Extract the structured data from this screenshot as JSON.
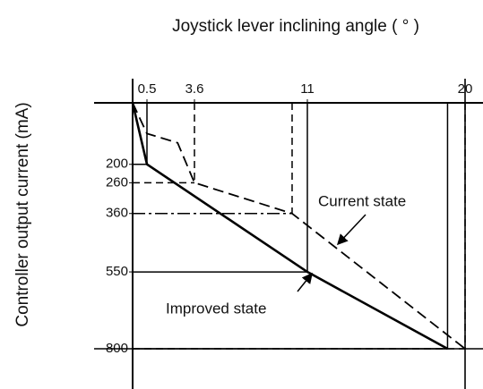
{
  "chart_data": {
    "type": "line",
    "xlabel": "Joystick lever inclining angle ( ° )",
    "ylabel": "Controller output current (mA)",
    "xlim": [
      0,
      20
    ],
    "xticks": [
      0.5,
      3.6,
      11,
      20
    ],
    "ylim": [
      0,
      800
    ],
    "yticks": [
      200,
      260,
      360,
      550,
      800
    ],
    "color": "#000000",
    "series": [
      {
        "name": "Improved state",
        "style": "solid",
        "x": [
          0,
          0.5,
          11,
          19
        ],
        "values": [
          0,
          200,
          550,
          800
        ]
      },
      {
        "name": "Current state",
        "style": "dashed",
        "x": [
          0,
          0.5,
          2.5,
          3.6,
          10,
          20
        ],
        "values": [
          0,
          100,
          130,
          260,
          360,
          800
        ]
      }
    ]
  }
}
